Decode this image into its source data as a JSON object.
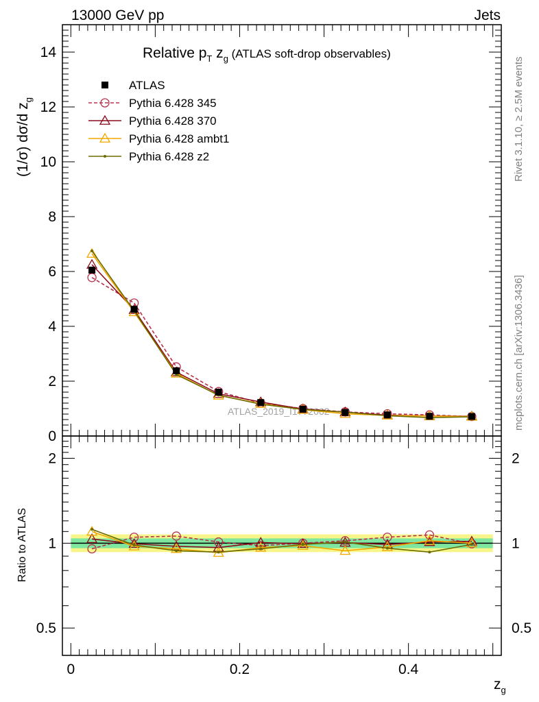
{
  "header": {
    "left_label": "13000 GeV pp",
    "right_label": "Jets"
  },
  "side_labels": {
    "rivet": "Rivet 3.1.10, ≥ 2.5M events",
    "mcplots": "mcplots.cern.ch [arXiv:1306.3436]"
  },
  "watermark": "ATLAS_2019_I1772062",
  "chart_data": [
    {
      "type": "line",
      "title": "Relative pT zg (ATLAS soft-drop observables)",
      "title_parts": {
        "main": "Relative p",
        "sub_T": "T",
        "mid": " z",
        "sub_g": "g",
        "note": " (ATLAS soft-drop observables)"
      },
      "ylabel": "(1/σ) dσ/d z_g",
      "xlabel": "z_g",
      "xlim": [
        -0.01,
        0.51
      ],
      "ylim": [
        0,
        15
      ],
      "y_ticks": [
        0,
        2,
        4,
        6,
        8,
        10,
        12,
        14
      ],
      "legend_position": "top-left",
      "x": [
        0.025,
        0.075,
        0.125,
        0.175,
        0.225,
        0.275,
        0.325,
        0.375,
        0.425,
        0.475
      ],
      "series": [
        {
          "name": "ATLAS",
          "color": "#000000",
          "marker": "square",
          "dashed": false,
          "values": [
            6.05,
            4.62,
            2.38,
            1.6,
            1.22,
            0.98,
            0.86,
            0.77,
            0.72,
            0.71
          ]
        },
        {
          "name": "Pythia 6.428 345",
          "color": "#b5304a",
          "marker": "circle",
          "dashed": true,
          "values": [
            5.78,
            4.85,
            2.52,
            1.62,
            1.2,
            1.0,
            0.88,
            0.81,
            0.77,
            0.71
          ]
        },
        {
          "name": "Pythia 6.428 370",
          "color": "#8b0a1a",
          "marker": "triangle",
          "dashed": false,
          "values": [
            6.25,
            4.6,
            2.33,
            1.54,
            1.24,
            0.98,
            0.87,
            0.76,
            0.73,
            0.72
          ]
        },
        {
          "name": "Pythia 6.428 ambt1",
          "color": "#f0a800",
          "marker": "triangle",
          "dashed": false,
          "values": [
            6.65,
            4.52,
            2.28,
            1.48,
            1.18,
            0.96,
            0.81,
            0.75,
            0.73,
            0.71
          ]
        },
        {
          "name": "Pythia 6.428 z2",
          "color": "#6b6b00",
          "marker": "dot",
          "dashed": false,
          "values": [
            6.75,
            4.56,
            2.24,
            1.49,
            1.16,
            0.97,
            0.87,
            0.74,
            0.67,
            0.7
          ]
        }
      ]
    },
    {
      "type": "line",
      "ylabel": "Ratio to ATLAS",
      "xlabel": "z_g",
      "xlim": [
        -0.01,
        0.51
      ],
      "ylim": [
        0.4,
        2.4
      ],
      "y_scale": "log",
      "y_ticks": [
        0.5,
        1,
        2
      ],
      "x_ticks": [
        0,
        0.2,
        0.4
      ],
      "x": [
        0.025,
        0.075,
        0.125,
        0.175,
        0.225,
        0.275,
        0.325,
        0.375,
        0.425,
        0.475
      ],
      "bands": {
        "inner_green": [
          0.96,
          1.04
        ],
        "outer_yellow": [
          0.93,
          1.075
        ],
        "green_color": "#7fe6a0",
        "yellow_color": "#f7f58a"
      },
      "series": [
        {
          "name": "Pythia 6.428 345",
          "values": [
            0.955,
            1.05,
            1.06,
            1.01,
            0.98,
            1.0,
            1.02,
            1.05,
            1.07,
            0.995
          ]
        },
        {
          "name": "Pythia 6.428 370",
          "values": [
            1.035,
            0.995,
            0.975,
            0.965,
            1.005,
            0.995,
            1.005,
            0.99,
            1.01,
            1.015
          ]
        },
        {
          "name": "Pythia 6.428 ambt1",
          "values": [
            1.1,
            0.975,
            0.955,
            0.925,
            0.965,
            0.98,
            0.94,
            0.97,
            1.02,
            1.0
          ]
        },
        {
          "name": "Pythia 6.428 z2",
          "values": [
            1.12,
            0.985,
            0.94,
            0.93,
            0.955,
            0.99,
            1.01,
            0.96,
            0.93,
            0.99
          ]
        }
      ]
    }
  ]
}
